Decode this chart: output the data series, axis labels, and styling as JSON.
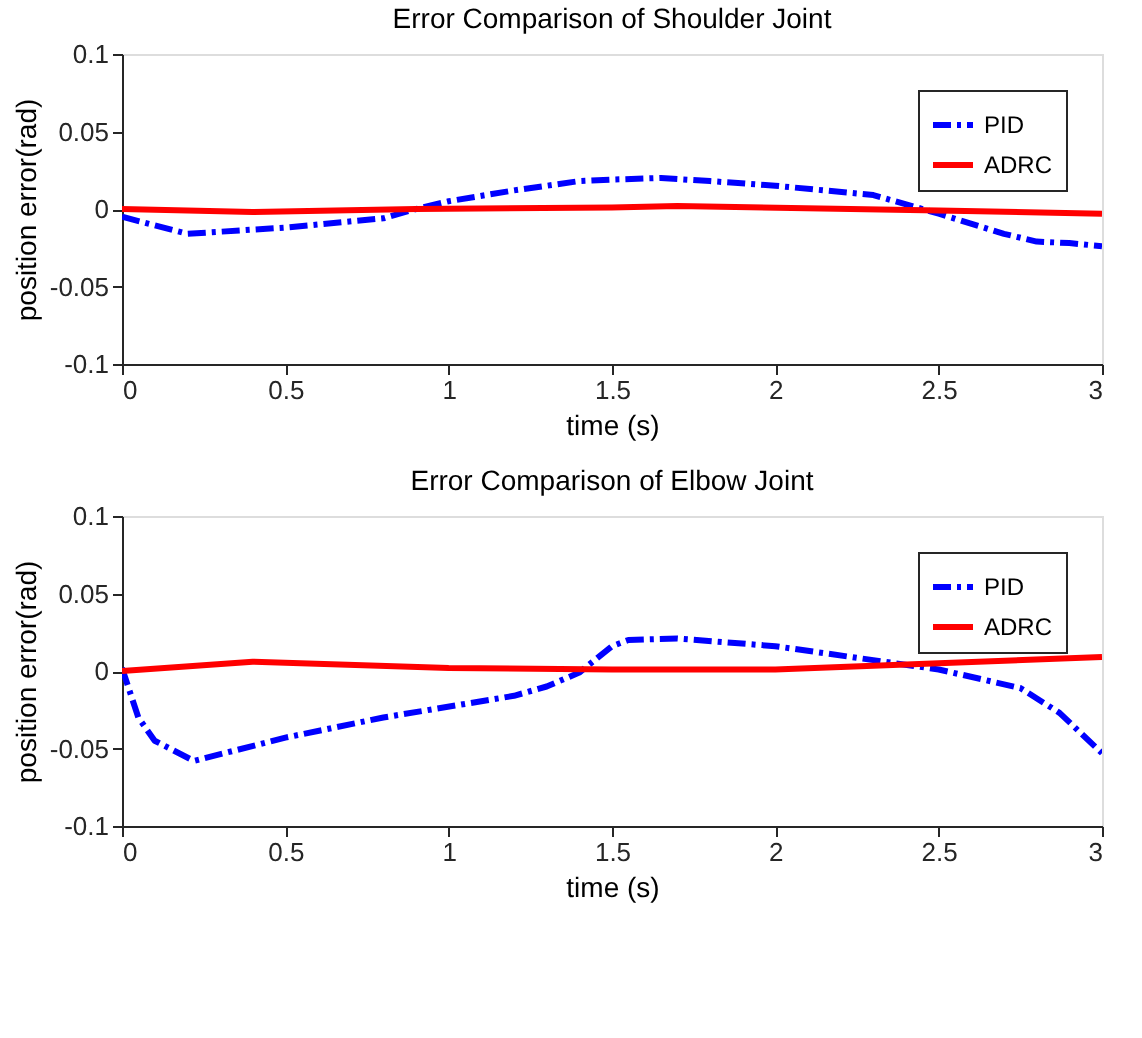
{
  "chart_data": [
    {
      "type": "line",
      "title": "Error Comparison of Shoulder Joint",
      "xlabel": "time (s)",
      "ylabel": "position error(rad)",
      "xlim": [
        0,
        3
      ],
      "xticks": [
        0,
        0.5,
        1,
        1.5,
        2,
        2.5,
        3
      ],
      "ylim": [
        -0.1,
        0.1
      ],
      "yticks": [
        -0.1,
        -0.05,
        0,
        0.05,
        0.1
      ],
      "grid": false,
      "legend": "top right",
      "series": [
        {
          "name": "PID",
          "color": "#0000ff",
          "line_style": "dashdot",
          "x": [
            0,
            0.2,
            0.5,
            0.8,
            0.9,
            1.0,
            1.2,
            1.4,
            1.5,
            1.65,
            1.8,
            2.0,
            2.3,
            2.5,
            2.7,
            2.8,
            2.9,
            3.0
          ],
          "values": [
            -0.005,
            -0.016,
            -0.012,
            -0.006,
            0,
            0.005,
            0.012,
            0.018,
            0.019,
            0.02,
            0.018,
            0.015,
            0.009,
            -0.003,
            -0.016,
            -0.021,
            -0.022,
            -0.024
          ]
        },
        {
          "name": "ADRC",
          "color": "#ff0000",
          "line_style": "solid",
          "x": [
            0,
            0.4,
            0.9,
            1.5,
            1.7,
            2.5,
            3.0
          ],
          "values": [
            0,
            -0.002,
            0,
            0.001,
            0.002,
            -0.001,
            -0.003
          ]
        }
      ]
    },
    {
      "type": "line",
      "title": "Error Comparison of Elbow Joint",
      "xlabel": "time (s)",
      "ylabel": "position error(rad)",
      "xlim": [
        0,
        3
      ],
      "xticks": [
        0,
        0.5,
        1,
        1.5,
        2,
        2.5,
        3
      ],
      "ylim": [
        -0.1,
        0.1
      ],
      "yticks": [
        -0.1,
        -0.05,
        0,
        0.05,
        0.1
      ],
      "grid": false,
      "legend": "top right",
      "series": [
        {
          "name": "PID",
          "color": "#0000ff",
          "line_style": "dashdot",
          "x": [
            0,
            0.05,
            0.1,
            0.22,
            0.5,
            0.8,
            1.2,
            1.3,
            1.4,
            1.5,
            1.55,
            1.7,
            2.0,
            2.3,
            2.5,
            2.75,
            2.87,
            3.0
          ],
          "values": [
            0.002,
            -0.03,
            -0.045,
            -0.058,
            -0.043,
            -0.03,
            -0.016,
            -0.01,
            -0.001,
            0.016,
            0.02,
            0.021,
            0.016,
            0.007,
            0.001,
            -0.011,
            -0.027,
            -0.053
          ]
        },
        {
          "name": "ADRC",
          "color": "#ff0000",
          "line_style": "solid",
          "x": [
            0,
            0.4,
            1.0,
            1.5,
            2.0,
            2.5,
            3.0
          ],
          "values": [
            0,
            0.006,
            0.002,
            0.001,
            0.001,
            0.005,
            0.009
          ]
        }
      ]
    }
  ]
}
